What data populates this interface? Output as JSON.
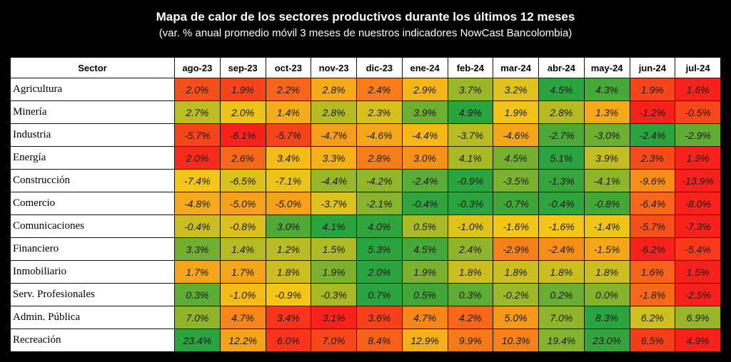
{
  "chart_data": {
    "type": "heatmap",
    "title": "Mapa de calor de los sectores productivos durante los últimos 12 meses",
    "subtitle": "(var. % anual promedio móvil 3 meses de nuestros indicadores NowCast Bancolombia)",
    "row_header": "Sector",
    "columns": [
      "ago-23",
      "sep-23",
      "oct-23",
      "nov-23",
      "dic-23",
      "ene-24",
      "feb-24",
      "mar-24",
      "abr-24",
      "may-24",
      "jun-24",
      "jul-24"
    ],
    "rows": [
      {
        "name": "Agricultura",
        "values": [
          2.0,
          1.9,
          2.2,
          2.8,
          2.4,
          2.9,
          3.7,
          3.2,
          4.5,
          4.3,
          1.9,
          1.6
        ]
      },
      {
        "name": "Minería",
        "values": [
          2.7,
          2.0,
          1.4,
          2.8,
          2.3,
          3.9,
          4.9,
          1.9,
          2.8,
          1.3,
          -1.2,
          -0.5
        ]
      },
      {
        "name": "Industria",
        "values": [
          -5.7,
          -6.1,
          -5.7,
          -4.7,
          -4.6,
          -4.4,
          -3.7,
          -4.6,
          -2.7,
          -3.0,
          -2.4,
          -2.9
        ]
      },
      {
        "name": "Energía",
        "values": [
          2.0,
          2.6,
          3.4,
          3.3,
          2.8,
          3.0,
          4.1,
          4.5,
          5.1,
          3.9,
          2.3,
          1.9
        ]
      },
      {
        "name": "Construcción",
        "values": [
          -7.4,
          -6.5,
          -7.1,
          -4.4,
          -4.2,
          -2.4,
          -0.9,
          -3.5,
          -1.3,
          -4.1,
          -9.6,
          -13.9
        ]
      },
      {
        "name": "Comercio",
        "values": [
          -4.8,
          -5.0,
          -5.0,
          -3.7,
          -2.1,
          -0.4,
          -0.3,
          -0.7,
          -0.4,
          -0.8,
          -6.4,
          -8.0
        ]
      },
      {
        "name": "Comunicaciones",
        "values": [
          -0.4,
          -0.8,
          3.0,
          4.1,
          4.0,
          0.5,
          -1.0,
          -1.6,
          -1.6,
          -1.4,
          -5.7,
          -7.3
        ]
      },
      {
        "name": "Financiero",
        "values": [
          3.3,
          1.4,
          1.2,
          1.5,
          5.3,
          4.5,
          2.4,
          -2.9,
          -2.4,
          -1.5,
          -6.2,
          -5.4
        ]
      },
      {
        "name": "Inmobiliario",
        "values": [
          1.7,
          1.7,
          1.8,
          1.9,
          2.0,
          1.9,
          1.8,
          1.8,
          1.8,
          1.8,
          1.6,
          1.5
        ]
      },
      {
        "name": "Serv. Profesionales",
        "values": [
          0.3,
          -1.0,
          -0.9,
          -0.3,
          0.7,
          0.5,
          0.3,
          -0.2,
          0.2,
          0.0,
          -1.8,
          -2.5
        ]
      },
      {
        "name": "Admin. Pública",
        "values": [
          7.0,
          4.7,
          3.4,
          3.1,
          3.6,
          4.7,
          4.2,
          5.0,
          7.0,
          8.3,
          6.2,
          6.9
        ]
      },
      {
        "name": "Recreación",
        "values": [
          23.4,
          12.2,
          6.0,
          7.0,
          8.4,
          12.9,
          9.9,
          10.3,
          19.4,
          23.0,
          6.5,
          4.9
        ]
      }
    ],
    "value_format": "percent_1dp",
    "color_scale": {
      "type": "per-row",
      "low": "#f8221c",
      "mid": "#f5c518",
      "high": "#2aa43e"
    }
  }
}
